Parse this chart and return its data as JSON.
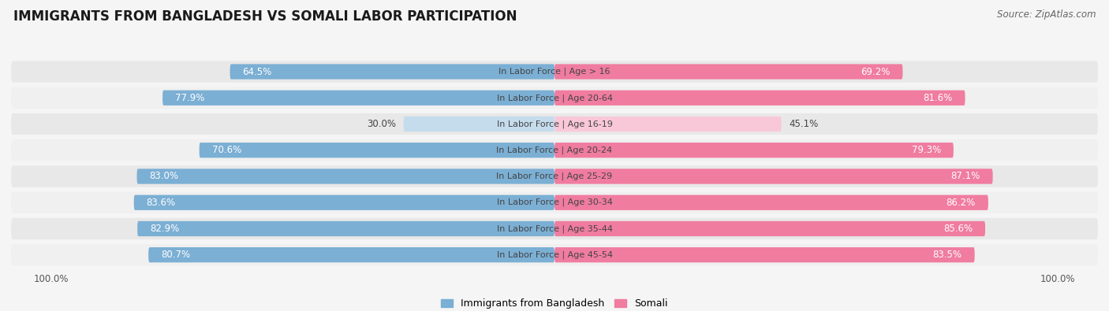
{
  "title": "IMMIGRANTS FROM BANGLADESH VS SOMALI LABOR PARTICIPATION",
  "source": "Source: ZipAtlas.com",
  "categories": [
    "In Labor Force | Age > 16",
    "In Labor Force | Age 20-64",
    "In Labor Force | Age 16-19",
    "In Labor Force | Age 20-24",
    "In Labor Force | Age 25-29",
    "In Labor Force | Age 30-34",
    "In Labor Force | Age 35-44",
    "In Labor Force | Age 45-54"
  ],
  "bangladesh_values": [
    64.5,
    77.9,
    30.0,
    70.6,
    83.0,
    83.6,
    82.9,
    80.7
  ],
  "somali_values": [
    69.2,
    81.6,
    45.1,
    79.3,
    87.1,
    86.2,
    85.6,
    83.5
  ],
  "bangladesh_color": "#7bafd4",
  "somali_color": "#f07ca0",
  "bangladesh_color_light": "#c5dced",
  "somali_color_light": "#f9c8d8",
  "row_bg_color": "#e8e8e8",
  "row_bg_alt": "#f0f0f0",
  "background_color": "#f5f5f5",
  "label_white": "#ffffff",
  "label_dark": "#444444",
  "legend_bangladesh": "Immigrants from Bangladesh",
  "legend_somali": "Somali",
  "title_fontsize": 12,
  "source_fontsize": 8.5,
  "bar_label_fontsize": 8.5,
  "category_fontsize": 8,
  "legend_fontsize": 9,
  "axis_label_fontsize": 8.5
}
